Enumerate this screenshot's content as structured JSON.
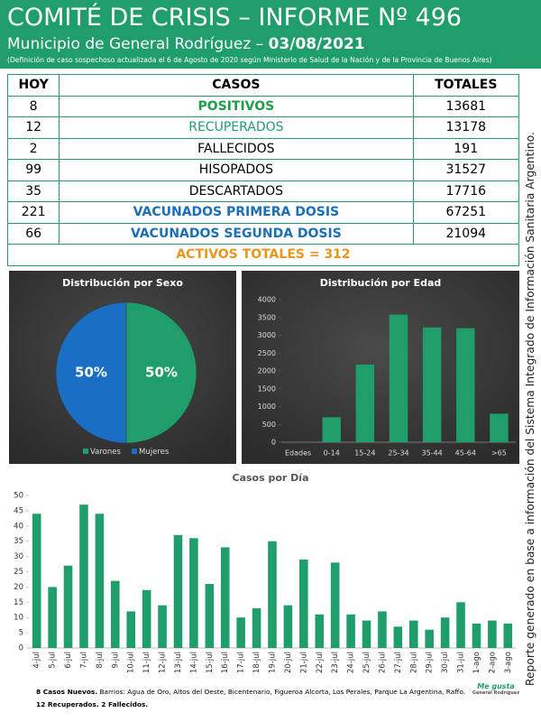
{
  "header": {
    "title": "COMITÉ DE CRISIS – INFORME Nº 496",
    "subtitle": "Municipio de General Rodríguez – ",
    "date": "03/08/2021",
    "note": "(Definición de caso sospechoso actualizada el 6 de Agosto de 2020 según Ministerio de Salud de la Nación y de la Provincia de Buenos Aires)"
  },
  "table": {
    "columns": [
      "HOY",
      "CASOS",
      "TOTALES"
    ],
    "rows": [
      [
        8,
        "POSITIVOS",
        13681
      ],
      [
        12,
        "RECUPERADOS",
        13178
      ],
      [
        2,
        "FALLECIDOS",
        191
      ],
      [
        99,
        "HISOPADOS",
        31527
      ],
      [
        35,
        "DESCARTADOS",
        17716
      ],
      [
        221,
        "VACUNADOS PRIMERA DOSIS",
        67251
      ],
      [
        66,
        "VACUNADOS SEGUNDA DOSIS",
        21094
      ]
    ],
    "total": "ACTIVOS TOTALES = 312"
  },
  "chart_data": [
    {
      "type": "pie",
      "title": "Distribución por Sexo",
      "categories": [
        "Varones",
        "Mujeres"
      ],
      "values": [
        50,
        50
      ],
      "value_labels": [
        "50%",
        "50%"
      ],
      "colors": [
        "#1f9e6b",
        "#1a6fc4"
      ]
    },
    {
      "type": "bar",
      "title": "Distribución por Edad",
      "x_label": "Edades",
      "categories": [
        "0-14",
        "15-24",
        "25-34",
        "35-44",
        "45-64",
        ">65"
      ],
      "values": [
        700,
        2180,
        3580,
        3220,
        3200,
        800
      ],
      "color": "#1f9e6b",
      "ylim": [
        0,
        4000
      ],
      "yticks": [
        0,
        500,
        1000,
        1500,
        2000,
        2500,
        3000,
        3500,
        4000
      ]
    },
    {
      "type": "bar",
      "title": "Casos por Día",
      "categories": [
        "4-jul",
        "5-jul",
        "6-jul",
        "7-jul",
        "8-jul",
        "9-jul",
        "10-jul",
        "11-jul",
        "12-jul",
        "13-jul",
        "14-jul",
        "15-jul",
        "16-jul",
        "17-jul",
        "18-jul",
        "19-jul",
        "20-jul",
        "21-jul",
        "22-jul",
        "23-jul",
        "24-jul",
        "25-jul",
        "26-jul",
        "27-jul",
        "28-jul",
        "29-jul",
        "30-jul",
        "31-jul",
        "1-ago",
        "2-ago",
        "3-ago"
      ],
      "values": [
        44,
        20,
        27,
        47,
        44,
        22,
        12,
        19,
        14,
        37,
        36,
        21,
        33,
        10,
        13,
        35,
        14,
        29,
        11,
        28,
        11,
        9,
        12,
        7,
        9,
        6,
        10,
        15,
        8,
        9,
        8
      ],
      "color": "#1f9e6b",
      "ylim": [
        0,
        50
      ],
      "yticks": [
        0,
        5,
        10,
        15,
        20,
        25,
        30,
        35,
        40,
        45,
        50
      ]
    }
  ],
  "footer": {
    "new_cases": "8 Casos Nuevos.",
    "neighborhoods": " Barrios: Agua de Oro, Altos del Oeste, Bicentenario, Figueroa Alcorta, Los Perales, Parque La Argentina, Raffo.",
    "recovered": "12 Recuperados. 2 Fallecidos."
  },
  "side_note": "Reporte generado en base a información del Sistema Integrado de Información Sanitaria Argentino.",
  "logo": {
    "name": "Me gusta",
    "place": "General Rodríguez"
  }
}
